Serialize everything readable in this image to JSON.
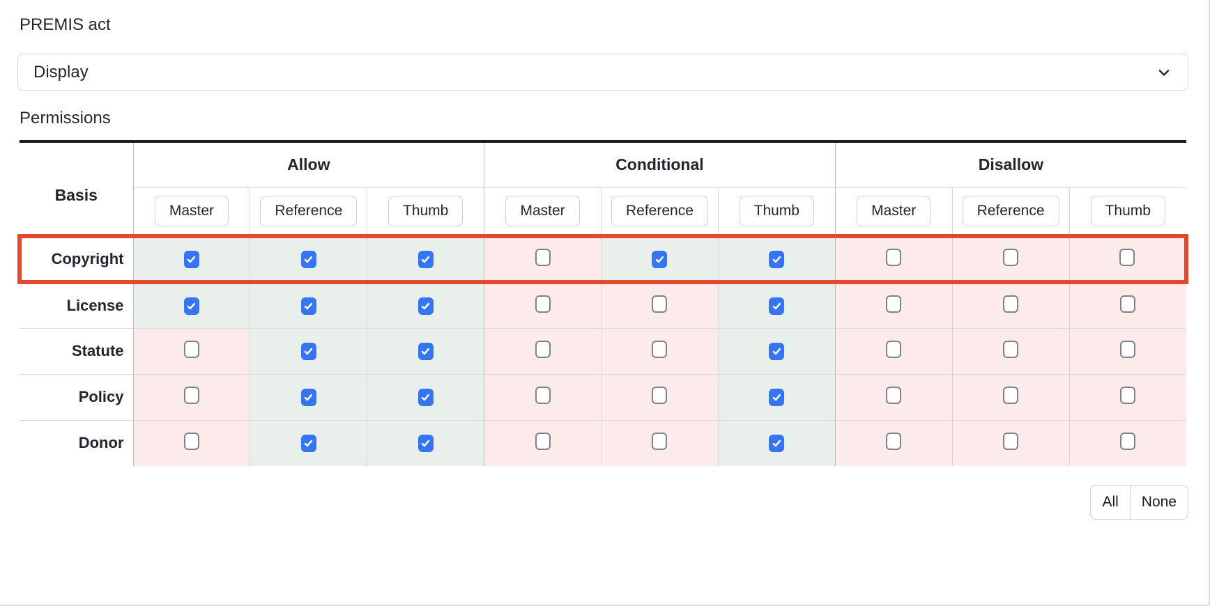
{
  "form": {
    "premis_act": {
      "label": "PREMIS act",
      "value": "Display"
    },
    "permissions_label": "Permissions"
  },
  "table": {
    "basis_header": "Basis",
    "groups": [
      {
        "label": "Allow"
      },
      {
        "label": "Conditional"
      },
      {
        "label": "Disallow"
      }
    ],
    "subcolumns": [
      "Master",
      "Reference",
      "Thumb"
    ],
    "rows": [
      {
        "label": "Copyright",
        "highlighted": true,
        "checks": [
          true,
          true,
          true,
          false,
          true,
          true,
          false,
          false,
          false
        ]
      },
      {
        "label": "License",
        "highlighted": false,
        "checks": [
          true,
          true,
          true,
          false,
          false,
          true,
          false,
          false,
          false
        ]
      },
      {
        "label": "Statute",
        "highlighted": false,
        "checks": [
          false,
          true,
          true,
          false,
          false,
          true,
          false,
          false,
          false
        ]
      },
      {
        "label": "Policy",
        "highlighted": false,
        "checks": [
          false,
          true,
          true,
          false,
          false,
          true,
          false,
          false,
          false
        ]
      },
      {
        "label": "Donor",
        "highlighted": false,
        "checks": [
          false,
          true,
          true,
          false,
          false,
          true,
          false,
          false,
          false
        ]
      }
    ]
  },
  "actions": {
    "all": "All",
    "none": "None"
  },
  "icons": {
    "select_chevron": "chevron-down-icon",
    "checked_mark": "checkmark-icon"
  },
  "colors": {
    "checkbox_checked": "#3574f2",
    "cell_checked_bg": "#e9f0ec",
    "cell_unchecked_bg": "#fcebea",
    "highlight_border": "#e3492e"
  }
}
